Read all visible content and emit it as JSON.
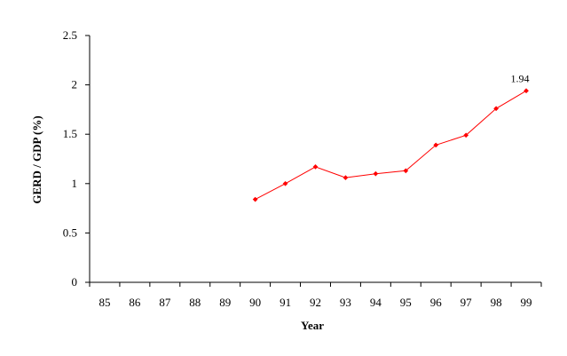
{
  "chart_data": {
    "type": "line",
    "title": "",
    "xlabel": "Year",
    "ylabel": "GERD / GDP (%)",
    "categories": [
      "85",
      "86",
      "87",
      "88",
      "89",
      "90",
      "91",
      "92",
      "93",
      "94",
      "95",
      "96",
      "97",
      "98",
      "99"
    ],
    "series": [
      {
        "values": [
          null,
          null,
          null,
          null,
          null,
          0.84,
          1.0,
          1.17,
          1.06,
          1.1,
          1.13,
          1.39,
          1.49,
          1.76,
          1.94
        ],
        "color": "#ff0000"
      }
    ],
    "annotations": [
      {
        "category": "99",
        "value": 1.94,
        "text": "1.94"
      }
    ],
    "ylim": [
      0,
      2.5
    ],
    "yticks": [
      0,
      0.5,
      1,
      1.5,
      2,
      2.5
    ],
    "ytick_labels": [
      "0",
      "0.5",
      "1",
      "1.5",
      "2",
      "2.5"
    ],
    "grid": false,
    "legend": "none"
  }
}
